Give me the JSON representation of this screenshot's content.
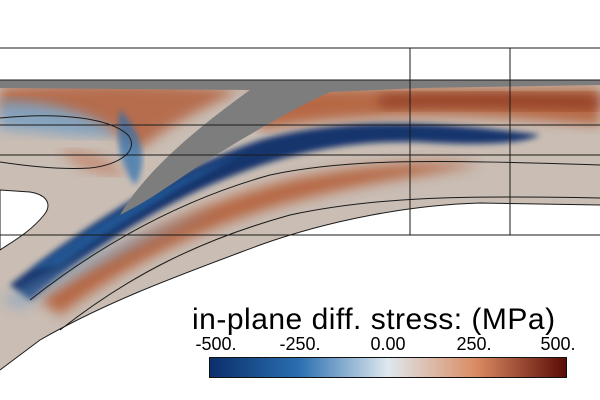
{
  "scale_legend": {
    "title": "in-plane diff. stress: (MPa)",
    "ticks": [
      "-500.",
      "-250.",
      "0.00",
      "250.",
      "500."
    ],
    "range": [
      -500,
      500
    ],
    "colormap": [
      "#0b2f6b",
      "#2a6fb0",
      "#dfe8ee",
      "#d98a62",
      "#5a0b05"
    ]
  },
  "colors": {
    "background": "#ffffff",
    "neutral_material": "#c9bdb4",
    "gap_gray": "#7d7d7d",
    "mesh_lines": "#1a1a1a"
  }
}
